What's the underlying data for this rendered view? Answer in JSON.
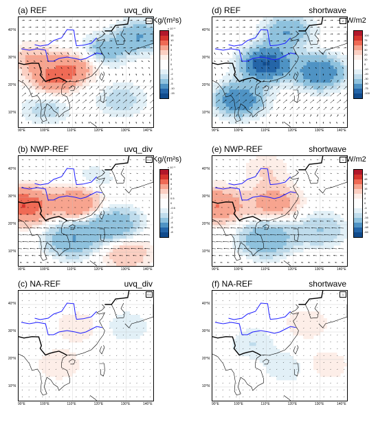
{
  "figure": {
    "panels": [
      {
        "id": "a",
        "title": "(a) REF",
        "variable": "uvq_div",
        "ref_label": "0.5",
        "pattern": "ref_div"
      },
      {
        "id": "b",
        "title": "(b) NWP-REF",
        "variable": "uvq_div",
        "ref_label": "0.1",
        "pattern": "nwp_div"
      },
      {
        "id": "c",
        "title": "(c) NA-REF",
        "variable": "uvq_div",
        "ref_label": "0.1",
        "pattern": "na_div"
      },
      {
        "id": "d",
        "title": "(d) REF",
        "variable": "shortwave",
        "ref_label": "2",
        "pattern": "ref_sw"
      },
      {
        "id": "e",
        "title": "(e) NWP-REF",
        "variable": "shortwave",
        "ref_label": "1",
        "pattern": "nwp_sw"
      },
      {
        "id": "f",
        "title": "(f) NA-REF",
        "variable": "shortwave",
        "ref_label": "1",
        "pattern": "na_sw"
      }
    ],
    "x_ticks": [
      "90°E",
      "100°E",
      "110°E",
      "120°E",
      "130°E",
      "140°E"
    ],
    "y_ticks": [
      "40°N",
      "30°N",
      "20°N",
      "10°N"
    ],
    "colorbars": [
      {
        "id": "div-ref",
        "unit": "Kg/(m²s)",
        "scale": "x 10⁻⁵",
        "labels": [
          "15",
          "10",
          "5",
          "3",
          "2",
          "1",
          "0",
          "-1",
          "-2",
          "-3",
          "-5",
          "-10",
          "-15"
        ],
        "colors": [
          "#b2182b",
          "#d6352e",
          "#ef6a55",
          "#f7a48f",
          "#fbcfc2",
          "#fdeee8",
          "#ffffff",
          "#ffffff",
          "#e2f0f7",
          "#bfdcec",
          "#8fc2de",
          "#4f93c4",
          "#2465a8",
          "#114b8c"
        ]
      },
      {
        "id": "div-diff",
        "unit": "Kg/(m²s)",
        "scale": "x 10⁻⁵",
        "labels": [
          "8",
          "6",
          "4",
          "2",
          "1",
          "0.5",
          "0",
          "-0.5",
          "-1",
          "-2",
          "-4",
          "-6",
          "-8"
        ],
        "colors": [
          "#b2182b",
          "#d6352e",
          "#ef6a55",
          "#f7a48f",
          "#fbcfc2",
          "#fdeee8",
          "#ffffff",
          "#ffffff",
          "#e2f0f7",
          "#bfdcec",
          "#8fc2de",
          "#4f93c4",
          "#2465a8",
          "#114b8c"
        ]
      },
      {
        "id": "sw-ref",
        "unit": "W/m2",
        "scale": "",
        "labels": [
          "100",
          "75",
          "50",
          "30",
          "20",
          "10",
          "0",
          "-10",
          "-20",
          "-30",
          "-50",
          "-75",
          "-100"
        ],
        "colors": [
          "#b2182b",
          "#d6352e",
          "#ef6a55",
          "#f7a48f",
          "#fbcfc2",
          "#fdeee8",
          "#ffffff",
          "#ffffff",
          "#e2f0f7",
          "#bfdcec",
          "#8fc2de",
          "#4f93c4",
          "#2465a8",
          "#114b8c"
        ]
      },
      {
        "id": "sw-diff",
        "unit": "W/m2",
        "scale": "",
        "labels": [
          "64",
          "48",
          "32",
          "16",
          "8",
          "4",
          "0",
          "-4",
          "-8",
          "-16",
          "-32",
          "-48",
          "-64"
        ],
        "colors": [
          "#b2182b",
          "#d6352e",
          "#ef6a55",
          "#f7a48f",
          "#fbcfc2",
          "#fdeee8",
          "#ffffff",
          "#ffffff",
          "#e2f0f7",
          "#bfdcec",
          "#8fc2de",
          "#4f93c4",
          "#2465a8",
          "#114b8c"
        ]
      }
    ]
  },
  "chart_data": [
    {
      "type": "heatmap",
      "panel": "(a) REF",
      "field": "uvq_div",
      "xlim": [
        90,
        140
      ],
      "ylim": [
        5,
        45
      ],
      "vectors": true,
      "anomalies_scale": "x 10⁻⁵ Kg/(m²s)",
      "regions": [
        {
          "lon": 103,
          "lat": 22,
          "value": 5
        },
        {
          "lon": 113,
          "lat": 28,
          "value": 5
        },
        {
          "lon": 120,
          "lat": 32,
          "value": -5
        },
        {
          "lon": 135,
          "lat": 38,
          "value": -5
        },
        {
          "lon": 95,
          "lat": 30,
          "value": 3
        },
        {
          "lon": 128,
          "lat": 15,
          "value": -3
        },
        {
          "lon": 100,
          "lat": 12,
          "value": -3
        }
      ]
    },
    {
      "type": "heatmap",
      "panel": "(b) NWP-REF",
      "field": "uvq_div",
      "xlim": [
        90,
        140
      ],
      "ylim": [
        5,
        45
      ],
      "vectors": true,
      "regions": [
        {
          "lon": 92,
          "lat": 27,
          "value": 6
        },
        {
          "lon": 112,
          "lat": 28,
          "value": 4
        },
        {
          "lon": 125,
          "lat": 20,
          "value": -4
        },
        {
          "lon": 110,
          "lat": 15,
          "value": -4
        },
        {
          "lon": 130,
          "lat": 10,
          "value": 2
        },
        {
          "lon": 118,
          "lat": 36,
          "value": -1
        }
      ]
    },
    {
      "type": "heatmap",
      "panel": "(c) NA-REF",
      "field": "uvq_div",
      "xlim": [
        90,
        140
      ],
      "ylim": [
        5,
        45
      ],
      "vectors": true,
      "regions": [
        {
          "lon": 105,
          "lat": 18,
          "value": 1
        },
        {
          "lon": 112,
          "lat": 32,
          "value": 1
        },
        {
          "lon": 130,
          "lat": 32,
          "value": -1
        }
      ]
    },
    {
      "type": "heatmap",
      "panel": "(d) REF",
      "field": "shortwave",
      "xlim": [
        90,
        140
      ],
      "ylim": [
        5,
        45
      ],
      "vectors": true,
      "anomalies_scale": "W/m2",
      "regions": [
        {
          "lon": 110,
          "lat": 28,
          "value": -100
        },
        {
          "lon": 100,
          "lat": 15,
          "value": -75
        },
        {
          "lon": 130,
          "lat": 25,
          "value": -75
        },
        {
          "lon": 118,
          "lat": 40,
          "value": -50
        }
      ]
    },
    {
      "type": "heatmap",
      "panel": "(e) NWP-REF",
      "field": "shortwave",
      "xlim": [
        90,
        140
      ],
      "ylim": [
        5,
        45
      ],
      "vectors": true,
      "regions": [
        {
          "lon": 92,
          "lat": 27,
          "value": 32
        },
        {
          "lon": 113,
          "lat": 28,
          "value": 24
        },
        {
          "lon": 110,
          "lat": 15,
          "value": -32
        },
        {
          "lon": 130,
          "lat": 18,
          "value": -16
        },
        {
          "lon": 110,
          "lat": 40,
          "value": 8
        }
      ]
    },
    {
      "type": "heatmap",
      "panel": "(f) NA-REF",
      "field": "shortwave",
      "xlim": [
        90,
        140
      ],
      "ylim": [
        5,
        45
      ],
      "vectors": true,
      "regions": [
        {
          "lon": 125,
          "lat": 33,
          "value": 8
        },
        {
          "lon": 105,
          "lat": 26,
          "value": -8
        },
        {
          "lon": 118,
          "lat": 17,
          "value": -8
        },
        {
          "lon": 132,
          "lat": 18,
          "value": 8
        }
      ]
    }
  ]
}
